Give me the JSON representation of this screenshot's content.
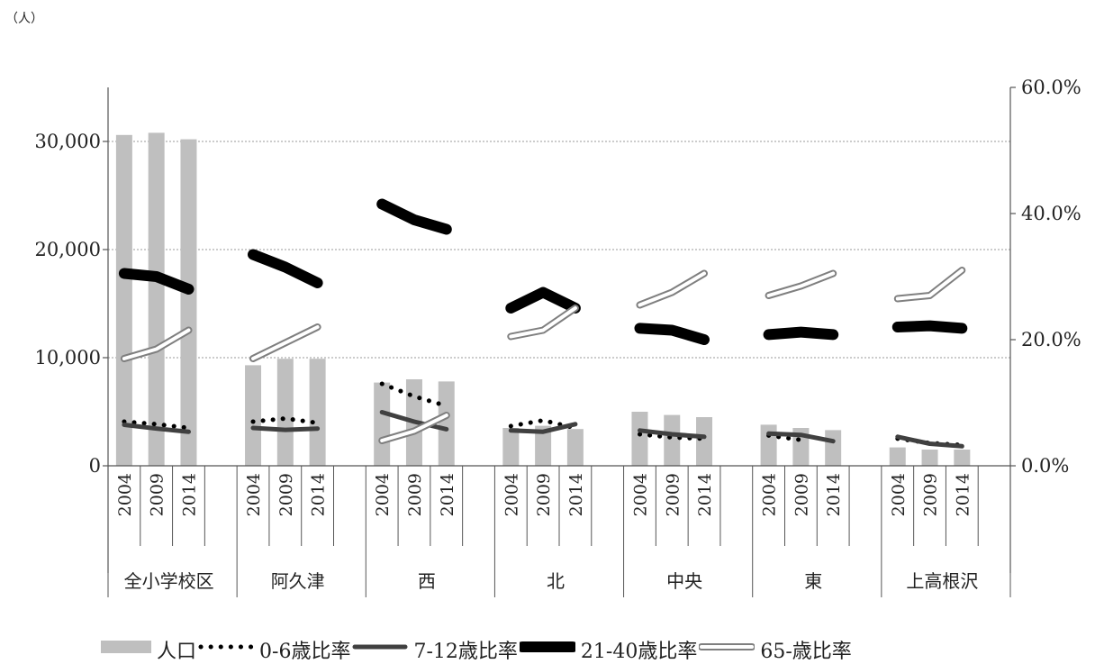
{
  "chart_data": {
    "type": "bar",
    "unit_label": "（人）",
    "groups": [
      "全小学校区",
      "阿久津",
      "西",
      "北",
      "中央",
      "東",
      "上高根沢"
    ],
    "years": [
      "2004",
      "2009",
      "2014"
    ],
    "left_axis": {
      "min": 0,
      "max": 35000,
      "ticks": [
        "0",
        "10,000",
        "20,000",
        "30,000"
      ],
      "tick_values": [
        0,
        10000,
        20000,
        30000
      ]
    },
    "right_axis": {
      "min": 0,
      "max": 60,
      "ticks": [
        "0.0%",
        "20.0%",
        "40.0%",
        "60.0%"
      ],
      "tick_values": [
        0,
        20,
        40,
        60
      ]
    },
    "grid": true,
    "legend_position": "bottom",
    "series": [
      {
        "name": "人口",
        "kind": "bar",
        "axis": "left",
        "color": "#bfbfbf",
        "values": [
          30600,
          30800,
          30200,
          9300,
          9900,
          9900,
          7700,
          8000,
          7800,
          3500,
          3700,
          3400,
          5000,
          4700,
          4500,
          3800,
          3500,
          3300,
          1700,
          1500,
          1500
        ]
      },
      {
        "name": "0-6歳比率",
        "kind": "line",
        "style": "dotted",
        "axis": "right",
        "color": "#000000",
        "values": [
          7.0,
          6.6,
          6.0,
          7.0,
          7.5,
          6.8,
          13.0,
          11.0,
          9.5,
          6.3,
          7.2,
          6.0,
          5.0,
          4.5,
          4.3,
          4.8,
          4.1,
          null,
          4.3,
          3.6,
          3.3
        ]
      },
      {
        "name": "7-12歳比率",
        "kind": "line",
        "style": "solid",
        "axis": "right",
        "color": "#404040",
        "values": [
          6.5,
          5.9,
          5.4,
          6.0,
          5.7,
          5.9,
          8.5,
          7.0,
          5.8,
          5.6,
          5.4,
          6.6,
          5.6,
          5.0,
          4.6,
          5.1,
          4.9,
          3.9,
          4.6,
          3.5,
          3.1
        ]
      },
      {
        "name": "21-40歳比率",
        "kind": "line",
        "style": "thick",
        "axis": "right",
        "color": "#000000",
        "values": [
          30.5,
          30.0,
          28.0,
          33.5,
          31.5,
          29.0,
          41.5,
          39.0,
          37.5,
          25.0,
          27.5,
          25.0,
          21.8,
          21.5,
          20.0,
          20.8,
          21.2,
          20.8,
          22.0,
          22.2,
          21.8
        ]
      },
      {
        "name": "65-歳比率",
        "kind": "line",
        "style": "double",
        "axis": "right",
        "color": "#7f7f7f",
        "values": [
          17.0,
          18.5,
          21.5,
          17.0,
          19.5,
          22.0,
          4.0,
          5.5,
          8.0,
          20.5,
          21.5,
          25.0,
          25.5,
          27.5,
          30.5,
          27.0,
          28.5,
          30.5,
          26.5,
          27.0,
          31.0
        ]
      }
    ]
  }
}
